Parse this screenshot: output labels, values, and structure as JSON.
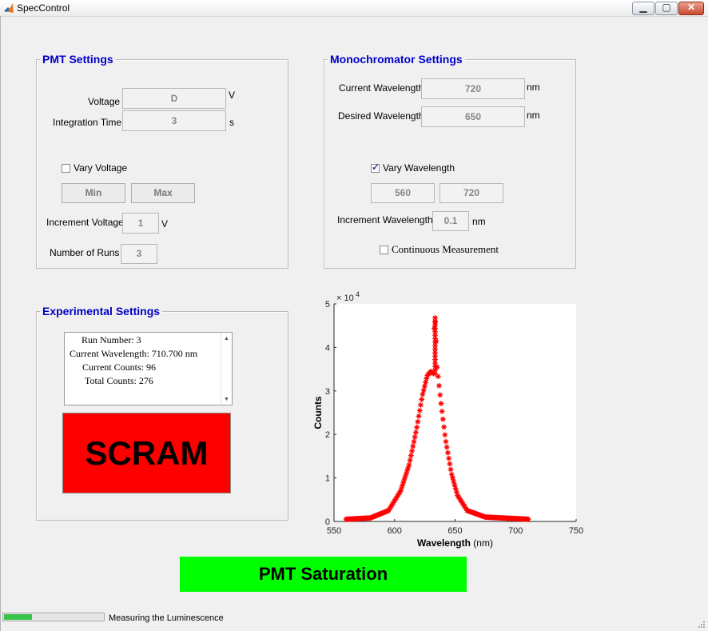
{
  "window": {
    "title": "SpecControl",
    "app_icon": "matlab-icon",
    "controls": [
      "minimize-icon",
      "maximize-icon",
      "close-icon"
    ]
  },
  "pmt_settings": {
    "title": "PMT Settings",
    "voltage_label": "Voltage",
    "voltage_value": "D",
    "voltage_unit": "V",
    "integration_time_label": "Integration Time",
    "integration_time_value": "3",
    "integration_time_unit": "s",
    "vary_voltage_label": "Vary Voltage",
    "vary_voltage_checked": false,
    "min_label": "Min",
    "max_label": "Max",
    "increment_voltage_label": "Increment Voltage",
    "increment_voltage_value": "1",
    "increment_voltage_unit": "V",
    "number_of_runs_label": "Number of Runs",
    "number_of_runs_value": "3"
  },
  "monochromator_settings": {
    "title": "Monochromator Settings",
    "current_wavelength_label": "Current Wavelength",
    "current_wavelength_value": "720",
    "current_wavelength_unit": "nm",
    "desired_wavelength_label": "Desired Wavelength",
    "desired_wavelength_value": "650",
    "desired_wavelength_unit": "nm",
    "vary_wavelength_label": "Vary Wavelength",
    "vary_wavelength_checked": true,
    "range_min_value": "560",
    "range_max_value": "720",
    "increment_wavelength_label": "Increment Wavelength",
    "increment_wavelength_value": "0.1",
    "increment_wavelength_unit": "nm",
    "continuous_measurement_label": "Continuous Measurement",
    "continuous_measurement_checked": false
  },
  "experimental_settings": {
    "title": "Experimental Settings",
    "log_lines": [
      "Run Number: 3",
      "Current Wavelength: 710.700 nm",
      "Current Counts: 96",
      "Total Counts: 276"
    ],
    "scram_label": "SCRAM",
    "scram_color": "#ff0000"
  },
  "saturation_indicator": {
    "label": "PMT Saturation",
    "color": "#00ff00"
  },
  "status_bar": {
    "progress": 0.28,
    "text": "Measuring the Luminescence",
    "progress_color": "#37c24a"
  },
  "chart_data": {
    "type": "scatter",
    "title": "",
    "xlabel": "Wavelength",
    "xlabel_unit": "(nm)",
    "ylabel": "Counts",
    "exponent_label": "× 10",
    "exponent_power": "4",
    "xlim": [
      550,
      750
    ],
    "ylim": [
      0,
      5
    ],
    "xticks": [
      "550",
      "600",
      "650",
      "700",
      "750"
    ],
    "yticks": [
      "0",
      "1",
      "2",
      "3",
      "4",
      "5"
    ],
    "grid": false,
    "marker": "asterisk",
    "color": "#ff0000",
    "x_range_measured": [
      560,
      710.7
    ],
    "y_units_scale": 10000,
    "peak_points": [
      {
        "x": 560,
        "y": 0.05
      },
      {
        "x": 580,
        "y": 0.08
      },
      {
        "x": 595,
        "y": 0.25
      },
      {
        "x": 605,
        "y": 0.7
      },
      {
        "x": 612,
        "y": 1.3
      },
      {
        "x": 618,
        "y": 2.1
      },
      {
        "x": 623,
        "y": 2.9
      },
      {
        "x": 627,
        "y": 3.35
      },
      {
        "x": 630,
        "y": 3.45
      },
      {
        "x": 632,
        "y": 3.4
      },
      {
        "x": 633,
        "y": 4.7
      },
      {
        "x": 634,
        "y": 4.5
      },
      {
        "x": 635,
        "y": 3.6
      },
      {
        "x": 638,
        "y": 2.8
      },
      {
        "x": 642,
        "y": 1.9
      },
      {
        "x": 647,
        "y": 1.1
      },
      {
        "x": 652,
        "y": 0.6
      },
      {
        "x": 660,
        "y": 0.25
      },
      {
        "x": 675,
        "y": 0.1
      },
      {
        "x": 710.7,
        "y": 0.05
      }
    ]
  }
}
